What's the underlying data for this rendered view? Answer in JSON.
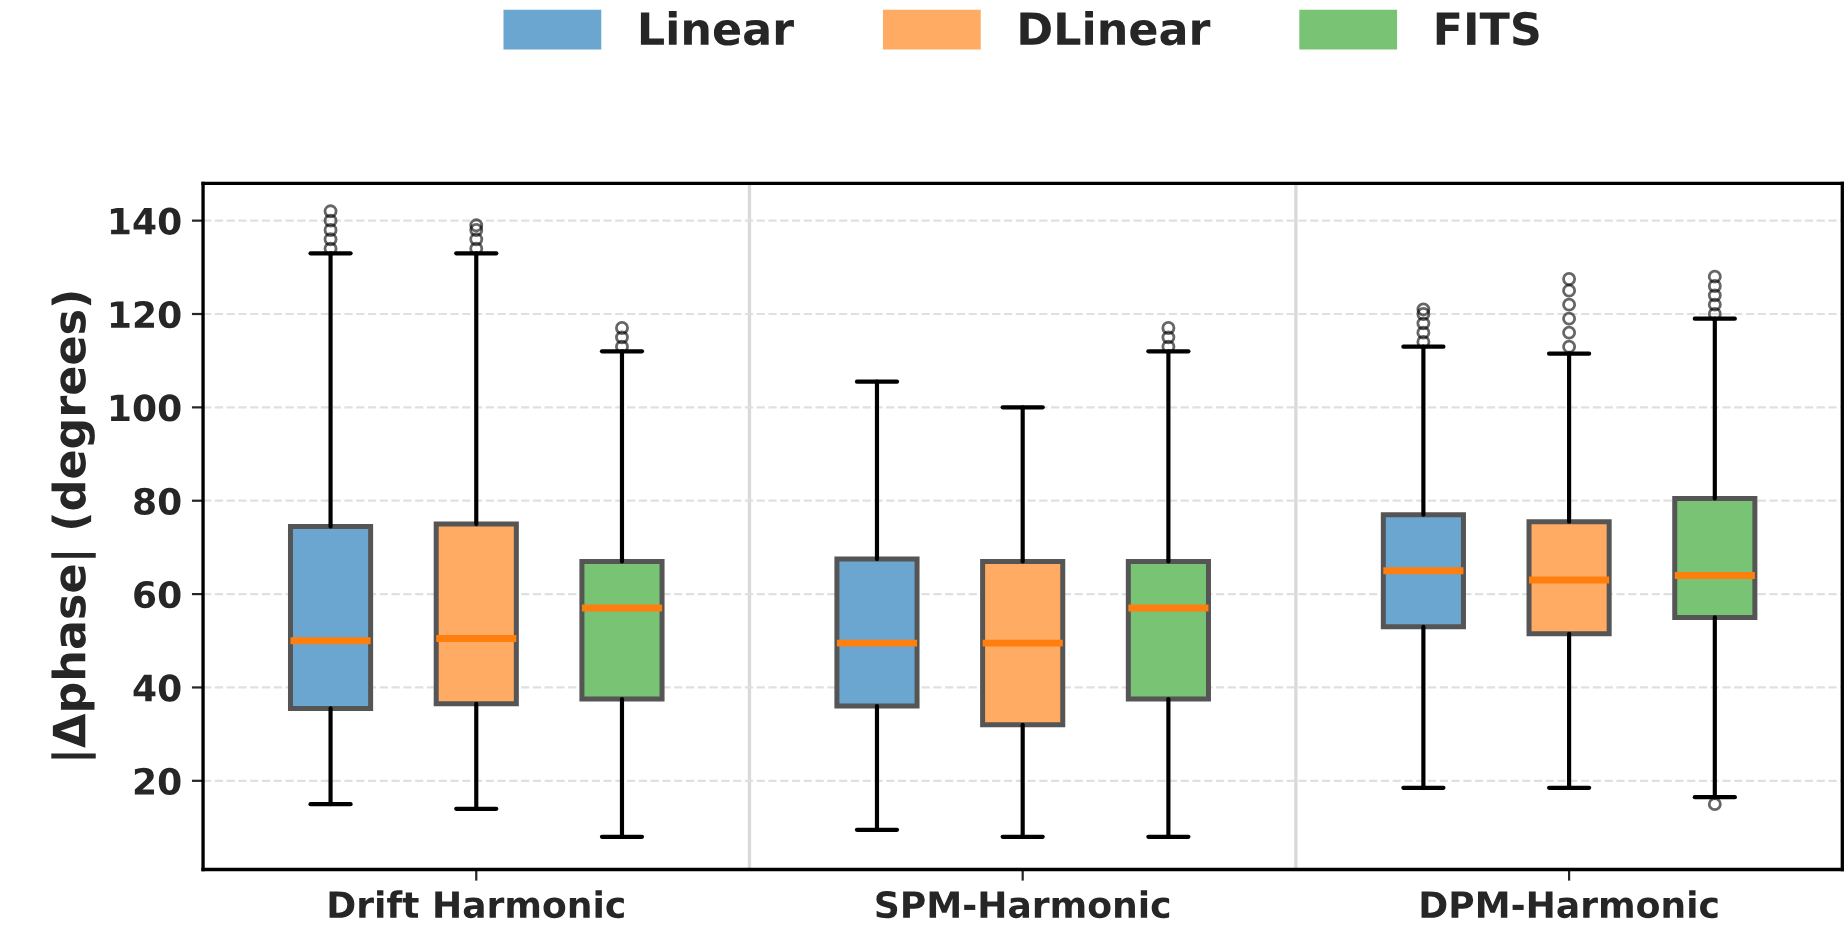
{
  "chart_data": {
    "type": "box",
    "ylabel": "|Δphase| (degrees)",
    "categories": [
      "Drift Harmonic",
      "SPM-Harmonic",
      "DPM-Harmonic"
    ],
    "series": [
      {
        "name": "Linear",
        "color": "#6ba6d0",
        "boxes": [
          {
            "low": 15,
            "q1": 35.5,
            "median": 50,
            "q3": 74.5,
            "high": 133,
            "outliers": [
              134,
              136,
              138,
              140,
              142
            ]
          },
          {
            "low": 9.5,
            "q1": 36,
            "median": 49.5,
            "q3": 67.5,
            "high": 105.5
          },
          {
            "low": 18.5,
            "q1": 53,
            "median": 65,
            "q3": 77,
            "high": 113,
            "outliers": [
              114,
              116,
              118,
              120,
              121
            ]
          }
        ]
      },
      {
        "name": "DLinear",
        "color": "#ffab63",
        "boxes": [
          {
            "low": 14,
            "q1": 36.5,
            "median": 50.5,
            "q3": 75,
            "high": 133,
            "outliers": [
              134,
              136,
              138,
              139
            ]
          },
          {
            "low": 8,
            "q1": 32,
            "median": 49.5,
            "q3": 67,
            "high": 100
          },
          {
            "low": 18.5,
            "q1": 51.5,
            "median": 63,
            "q3": 75.5,
            "high": 111.5,
            "outliers": [
              113,
              116,
              119,
              122,
              125,
              127.5
            ]
          }
        ]
      },
      {
        "name": "FITS",
        "color": "#79c375",
        "boxes": [
          {
            "low": 8,
            "q1": 37.5,
            "median": 57,
            "q3": 67,
            "high": 112,
            "outliers": [
              113,
              115,
              117
            ]
          },
          {
            "low": 8,
            "q1": 37.5,
            "median": 57,
            "q3": 67,
            "high": 112,
            "outliers": [
              113,
              115,
              117
            ]
          },
          {
            "low": 16.5,
            "q1": 55,
            "median": 64,
            "q3": 80.5,
            "high": 119,
            "outliers": [
              15,
              120,
              122,
              124,
              126,
              128
            ]
          }
        ]
      }
    ],
    "ylim": [
      1,
      148
    ],
    "yticks": [
      20,
      40,
      60,
      80,
      100,
      120,
      140
    ],
    "grid": "y",
    "legend": "top"
  }
}
